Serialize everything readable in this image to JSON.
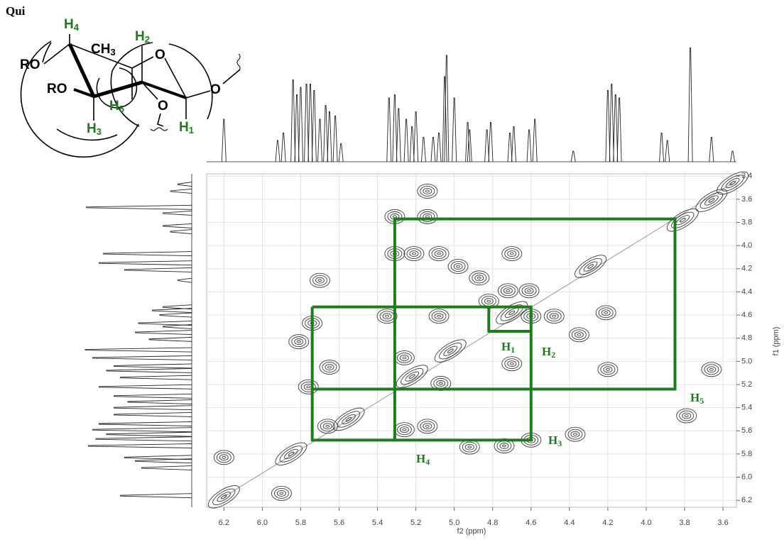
{
  "chart_data": {
    "type": "contour",
    "title": "Qui",
    "x_label": "f2 (ppm)",
    "y_label": "f1 (ppm)",
    "xlim": [
      6.29,
      3.53
    ],
    "ylim": [
      3.38,
      6.26
    ],
    "xticks": [
      6.2,
      {
        "value": 6.0,
        "label": "6.0"
      },
      5.8,
      5.6,
      5.4,
      5.2,
      {
        "value": 5.0,
        "label": "5.0"
      },
      4.8,
      4.6,
      4.4,
      4.2,
      {
        "value": 4.0,
        "label": "4.0"
      },
      3.8,
      3.6
    ],
    "yticks": [
      3.4,
      3.6,
      3.8,
      {
        "value": 4.0,
        "label": "4.0"
      },
      4.2,
      4.4,
      4.6,
      4.8,
      {
        "value": 5.0,
        "label": "5.0"
      },
      5.2,
      5.4,
      5.6,
      5.8,
      {
        "value": 6.0,
        "label": "6.0"
      },
      6.2
    ],
    "grid": true,
    "contour_color": "#3a3a3a",
    "cross_peaks": {
      "f2": [
        5.14,
        5.31,
        5.14,
        5.31,
        5.21,
        5.08,
        4.7,
        5.7,
        4.98,
        4.87,
        4.72,
        4.61,
        5.74,
        5.35,
        5.08,
        4.82,
        4.6,
        4.48,
        4.21,
        5.81,
        4.35,
        5.65,
        5.26,
        4.7,
        4.2,
        3.66,
        5.76,
        5.07,
        5.66,
        5.26,
        5.14,
        4.6,
        4.37,
        4.92,
        4.74,
        6.2,
        5.9,
        3.79
      ],
      "f1": [
        3.53,
        3.75,
        3.75,
        4.07,
        4.07,
        4.07,
        4.07,
        4.3,
        4.18,
        4.28,
        4.39,
        4.39,
        4.67,
        4.61,
        4.61,
        4.48,
        4.61,
        4.61,
        4.58,
        4.83,
        4.77,
        5.05,
        4.97,
        5.02,
        5.07,
        5.07,
        5.22,
        5.19,
        5.56,
        5.59,
        5.56,
        5.68,
        5.63,
        5.74,
        5.73,
        5.83,
        6.14,
        5.47
      ]
    },
    "diagonal_peaks": {
      "f2": [
        6.2,
        5.85,
        5.55,
        5.22,
        5.02,
        4.7,
        4.29,
        3.81,
        3.66,
        3.55
      ],
      "f1": [
        6.17,
        5.8,
        5.5,
        5.13,
        4.91,
        4.58,
        4.18,
        3.78,
        3.61,
        3.46
      ]
    },
    "f2_projection": {
      "ppm": [
        6.2,
        5.92,
        5.89,
        5.84,
        5.82,
        5.8,
        5.77,
        5.75,
        5.73,
        5.7,
        5.67,
        5.65,
        5.62,
        5.59,
        5.34,
        5.31,
        5.29,
        5.25,
        5.22,
        5.2,
        5.16,
        5.11,
        5.08,
        5.05,
        5.04,
        5.0,
        4.93,
        4.92,
        4.83,
        4.81,
        4.71,
        4.69,
        4.61,
        4.58,
        4.38,
        4.2,
        4.18,
        4.16,
        4.14,
        3.92,
        3.89,
        3.77,
        3.66,
        3.55
      ],
      "intensity": [
        40,
        20,
        27,
        77,
        63,
        70,
        73,
        73,
        67,
        40,
        53,
        47,
        43,
        17,
        60,
        63,
        50,
        40,
        33,
        47,
        23,
        23,
        27,
        80,
        100,
        60,
        37,
        30,
        30,
        37,
        27,
        33,
        30,
        40,
        10,
        67,
        73,
        63,
        60,
        27,
        20,
        107,
        23,
        10
      ]
    },
    "f1_projection": {
      "ppm": [
        3.47,
        3.53,
        3.67,
        3.72,
        3.83,
        3.88,
        4.07,
        4.15,
        4.21,
        4.3,
        4.53,
        4.56,
        4.6,
        4.67,
        4.7,
        4.75,
        4.81,
        4.9,
        4.97,
        5.04,
        5.08,
        5.14,
        5.22,
        5.3,
        5.35,
        5.4,
        5.46,
        5.54,
        5.59,
        5.63,
        5.67,
        5.73,
        5.83,
        5.86,
        5.92,
        6.16
      ],
      "intensity": [
        13,
        20,
        99,
        27,
        27,
        20,
        83,
        87,
        63,
        13,
        27,
        37,
        30,
        50,
        27,
        53,
        40,
        100,
        93,
        73,
        80,
        67,
        87,
        73,
        60,
        73,
        73,
        87,
        93,
        80,
        90,
        97,
        63,
        53,
        47,
        67
      ]
    },
    "correlation_color": "#1e7b1e",
    "correlation_paths": [
      {
        "f2": [
          5.74,
          4.6,
          4.6,
          5.74,
          5.74
        ],
        "f1": [
          4.53,
          4.53,
          5.68,
          5.68,
          4.53
        ]
      },
      {
        "f2": [
          5.31,
          5.31,
          3.85,
          3.85,
          5.74
        ],
        "f1": [
          5.68,
          3.77,
          3.77,
          5.24,
          5.24
        ]
      },
      {
        "f2": [
          4.82,
          4.82,
          4.6
        ],
        "f1": [
          4.53,
          4.74,
          4.74
        ]
      }
    ],
    "annotations": [
      {
        "text": "H",
        "sub": "1"
      },
      {
        "text": "H",
        "sub": "2"
      },
      {
        "text": "H",
        "sub": "3"
      },
      {
        "text": "H",
        "sub": "4"
      },
      {
        "text": "H",
        "sub": "5"
      }
    ],
    "molecule": {
      "labels": [
        {
          "text": "H",
          "sub": "4"
        },
        {
          "text": "H",
          "sub": "2"
        },
        {
          "text": "CH",
          "sub": "3"
        },
        {
          "text": "H",
          "sub": "5"
        },
        {
          "text": "H",
          "sub": "3"
        },
        {
          "text": "H",
          "sub": "1"
        },
        {
          "text": "RO"
        },
        {
          "text": "RO"
        },
        {
          "text": "O"
        },
        {
          "text": "O"
        },
        {
          "text": "O"
        }
      ]
    }
  }
}
